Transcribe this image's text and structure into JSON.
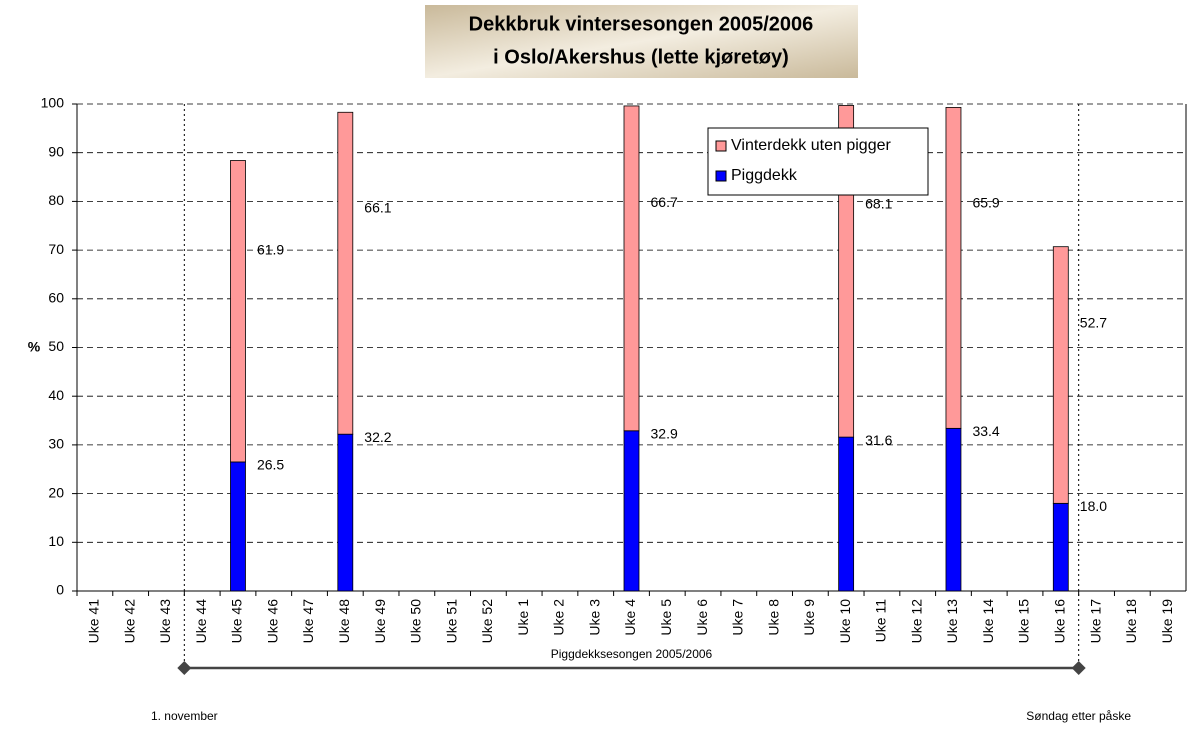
{
  "chart_data": {
    "type": "stacked_bar",
    "title": [
      "Dekkbruk vintersesongen 2005/2006",
      "i Oslo/Akershus (lette kjøretøy)"
    ],
    "y_label": "%",
    "categories": [
      "Uke 41",
      "Uke 42",
      "Uke 43",
      "Uke 44",
      "Uke 45",
      "Uke 46",
      "Uke 47",
      "Uke 48",
      "Uke 49",
      "Uke 50",
      "Uke 51",
      "Uke 52",
      "Uke 1",
      "Uke 2",
      "Uke 3",
      "Uke 4",
      "Uke 5",
      "Uke 6",
      "Uke 7",
      "Uke 8",
      "Uke 9",
      "Uke 10",
      "Uke 11",
      "Uke 12",
      "Uke 13",
      "Uke 14",
      "Uke 15",
      "Uke 16",
      "Uke 17",
      "Uke 18",
      "Uke 19"
    ],
    "series": [
      {
        "name": "Piggdekk",
        "color": "#0000ff",
        "values": [
          null,
          null,
          null,
          null,
          26.5,
          null,
          null,
          32.2,
          null,
          null,
          null,
          null,
          null,
          null,
          null,
          32.9,
          null,
          null,
          null,
          null,
          null,
          31.6,
          null,
          null,
          33.4,
          null,
          null,
          18.0,
          null,
          null,
          null
        ],
        "value_labels": [
          null,
          null,
          null,
          null,
          "26.5",
          null,
          null,
          "32.2",
          null,
          null,
          null,
          null,
          null,
          null,
          null,
          "32.9",
          null,
          null,
          null,
          null,
          null,
          "31.6",
          null,
          null,
          "33.4",
          null,
          null,
          "18.0",
          null,
          null,
          null
        ]
      },
      {
        "name": "Vinterdekk uten pigger",
        "color": "#ff9999",
        "values": [
          null,
          null,
          null,
          null,
          61.9,
          null,
          null,
          66.1,
          null,
          null,
          null,
          null,
          null,
          null,
          null,
          66.7,
          null,
          null,
          null,
          null,
          null,
          68.1,
          null,
          null,
          65.9,
          null,
          null,
          52.7,
          null,
          null,
          null
        ]
      }
    ],
    "ylim": [
      0,
      100
    ],
    "yticks": [
      0,
      10,
      20,
      30,
      40,
      50,
      60,
      70,
      80,
      90,
      100
    ],
    "grid": true,
    "season": {
      "label": "Piggdekksesongen 2005/2006",
      "start": "1. november",
      "end": "Søndag etter påske"
    }
  }
}
